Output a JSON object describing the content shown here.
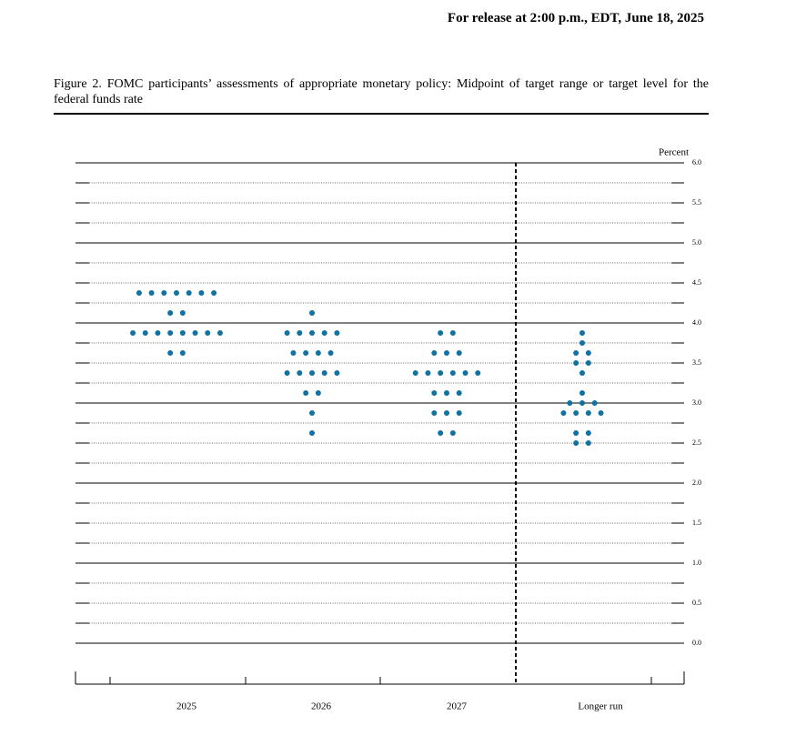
{
  "header": {
    "release": "For release at 2:00 p.m., EDT, June 18, 2025"
  },
  "chart_data": {
    "type": "dot",
    "title": "Figure 2.  FOMC participants’ assessments of appropriate monetary policy:  Midpoint of target range or target level for the federal funds rate",
    "y_label": "Percent",
    "categories": [
      "2025",
      "2026",
      "2027",
      "Longer run"
    ],
    "values": [
      [
        4.375,
        4.375,
        4.375,
        4.375,
        4.375,
        4.375,
        4.375,
        4.125,
        4.125,
        3.875,
        3.875,
        3.875,
        3.875,
        3.875,
        3.875,
        3.875,
        3.875,
        3.625,
        3.625
      ],
      [
        4.125,
        3.875,
        3.875,
        3.875,
        3.875,
        3.875,
        3.625,
        3.625,
        3.625,
        3.625,
        3.375,
        3.375,
        3.375,
        3.375,
        3.375,
        3.125,
        3.125,
        2.875,
        2.625
      ],
      [
        3.875,
        3.875,
        3.625,
        3.625,
        3.625,
        3.375,
        3.375,
        3.375,
        3.375,
        3.375,
        3.375,
        3.125,
        3.125,
        3.125,
        2.875,
        2.875,
        2.875,
        2.625,
        2.625
      ],
      [
        3.875,
        3.75,
        3.625,
        3.625,
        3.5,
        3.5,
        3.375,
        3.125,
        3,
        3,
        3,
        2.875,
        2.875,
        2.875,
        2.875,
        2.625,
        2.625,
        2.5,
        2.5
      ]
    ],
    "color": "#0f72a0",
    "ylim": [
      0,
      6
    ],
    "yticks": [
      {
        "value": 0,
        "label": "0.0"
      },
      0.5,
      {
        "value": 1,
        "label": "1.0"
      },
      1.5,
      {
        "value": 2,
        "label": "2.0"
      },
      2.5,
      {
        "value": 3,
        "label": "3.0"
      },
      3.5,
      {
        "value": 4,
        "label": "4.0"
      },
      4.5,
      {
        "value": 5,
        "label": "5.0"
      },
      5.5,
      {
        "value": 6,
        "label": "6.0"
      }
    ],
    "grid": true
  }
}
